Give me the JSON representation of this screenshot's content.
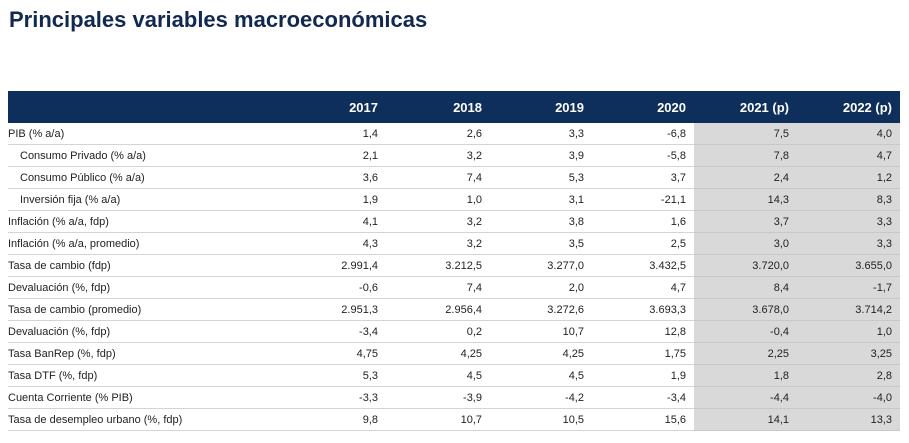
{
  "title": "Principales variables macroeconómicas",
  "table": {
    "header": [
      "",
      "2017",
      "2018",
      "2019",
      "2020",
      "2021 (p)",
      "2022 (p)"
    ],
    "rows": [
      [
        "PIB (% a/a)",
        "1,4",
        "2,6",
        "3,3",
        "-6,8",
        "7,5",
        "4,0"
      ],
      [
        "Consumo Privado (% a/a)",
        "2,1",
        "3,2",
        "3,9",
        "-5,8",
        "7,8",
        "4,7"
      ],
      [
        "Consumo Público (% a/a)",
        "3,6",
        "7,4",
        "5,3",
        "3,7",
        "2,4",
        "1,2"
      ],
      [
        "Inversión fija (% a/a)",
        "1,9",
        "1,0",
        "3,1",
        "-21,1",
        "14,3",
        "8,3"
      ],
      [
        "Inflación (% a/a, fdp)",
        "4,1",
        "3,2",
        "3,8",
        "1,6",
        "3,7",
        "3,3"
      ],
      [
        "Inflación (% a/a, promedio)",
        "4,3",
        "3,2",
        "3,5",
        "2,5",
        "3,0",
        "3,3"
      ],
      [
        "Tasa de cambio (fdp)",
        "2.991,4",
        "3.212,5",
        "3.277,0",
        "3.432,5",
        "3.720,0",
        "3.655,0"
      ],
      [
        "Devaluación (%, fdp)",
        "-0,6",
        "7,4",
        "2,0",
        "4,7",
        "8,4",
        "-1,7"
      ],
      [
        "Tasa de cambio (promedio)",
        "2.951,3",
        "2.956,4",
        "3.272,6",
        "3.693,3",
        "3.678,0",
        "3.714,2"
      ],
      [
        "Devaluación (%, fdp)",
        "-3,4",
        "0,2",
        "10,7",
        "12,8",
        "-0,4",
        "1,0"
      ],
      [
        "Tasa BanRep (%, fdp)",
        "4,75",
        "4,25",
        "4,25",
        "1,75",
        "2,25",
        "3,25"
      ],
      [
        "Tasa DTF (%, fdp)",
        "5,3",
        "4,5",
        "4,5",
        "1,9",
        "1,8",
        "2,8"
      ],
      [
        "Cuenta Corriente (% PIB)",
        "-3,3",
        "-3,9",
        "-4,2",
        "-3,4",
        "-4,4",
        "-4,0"
      ],
      [
        "Tasa de desempleo urbano (%, fdp)",
        "9,8",
        "10,7",
        "10,5",
        "15,6",
        "14,1",
        "13,3"
      ]
    ]
  }
}
